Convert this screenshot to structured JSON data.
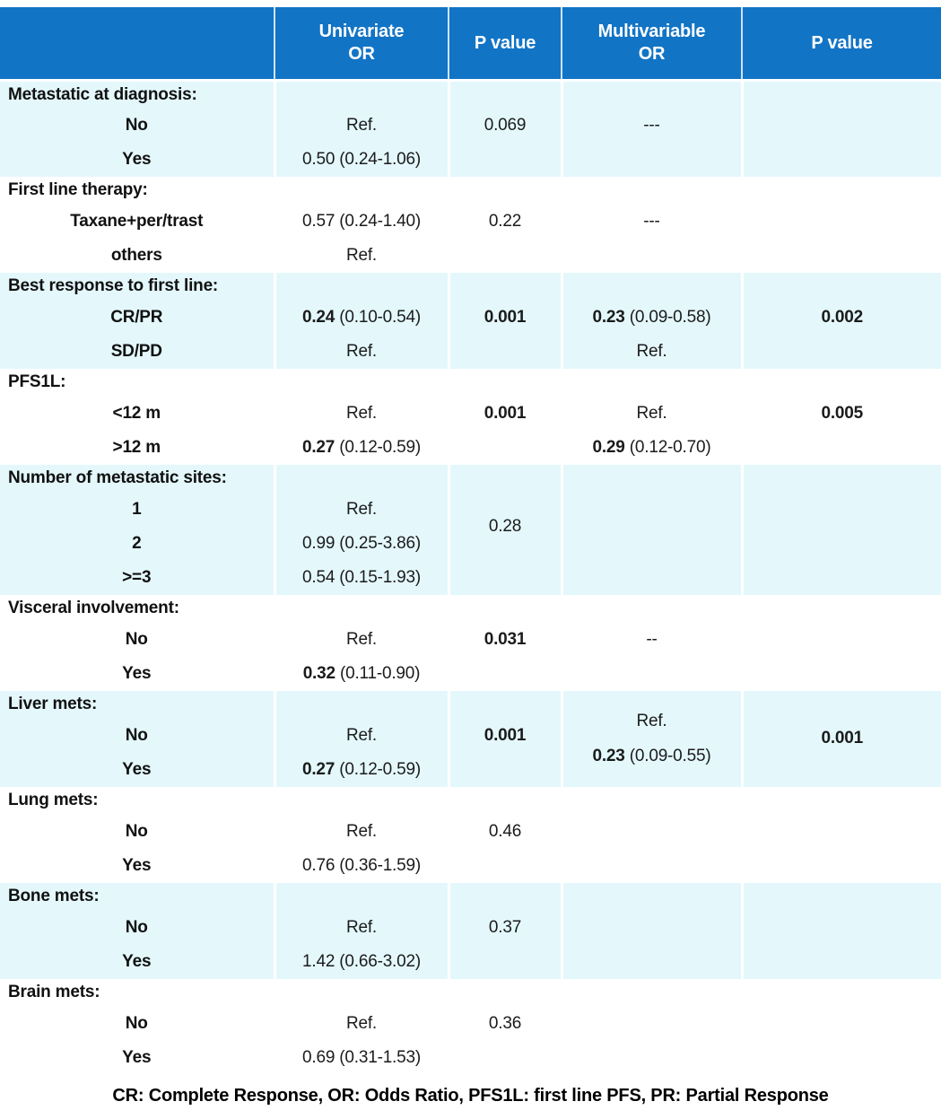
{
  "colors": {
    "header_bg": "#1274C5",
    "header_text": "#ffffff",
    "stripe_bg": "#E4F8FC",
    "body_text": "#1b1b1b"
  },
  "table": {
    "column_headers": [
      "",
      "Univariate\nOR",
      "P value",
      "Multivariable\nOR",
      "P value"
    ],
    "sections": [
      {
        "label": "Metastatic at diagnosis:",
        "shaded": true,
        "rows": [
          [
            {
              "sec": "Metastatic at diagnosis:"
            },
            null,
            null,
            null,
            null
          ],
          [
            {
              "sub": "No"
            },
            {
              "seg": [
                [
                  "Ref.",
                  0
                ]
              ]
            },
            {
              "seg": [
                [
                  "0.069",
                  0
                ]
              ]
            },
            {
              "seg": [
                [
                  "---",
                  0
                ]
              ]
            },
            null
          ],
          [
            {
              "sub": "Yes"
            },
            {
              "seg": [
                [
                  "0.50 (0.24-1.06)",
                  0
                ]
              ]
            },
            null,
            null,
            null
          ]
        ]
      },
      {
        "label": "First line therapy:",
        "shaded": false,
        "rows": [
          [
            {
              "sec": "First line therapy:"
            },
            null,
            null,
            null,
            null
          ],
          [
            {
              "sub": "Taxane+per/trast"
            },
            {
              "seg": [
                [
                  "0.57 (0.24-1.40)",
                  0
                ]
              ]
            },
            {
              "seg": [
                [
                  "0.22",
                  0
                ]
              ]
            },
            {
              "seg": [
                [
                  "---",
                  0
                ]
              ]
            },
            null
          ],
          [
            {
              "sub": "others"
            },
            {
              "seg": [
                [
                  "Ref.",
                  0
                ]
              ]
            },
            null,
            null,
            null
          ]
        ]
      },
      {
        "label": "Best response to first line:",
        "shaded": true,
        "rows": [
          [
            {
              "sec": "Best response to first line:"
            },
            null,
            null,
            null,
            null
          ],
          [
            {
              "sub": "CR/PR"
            },
            {
              "seg": [
                [
                  "0.24",
                  1
                ],
                [
                  " (0.10-0.54)",
                  0
                ]
              ]
            },
            {
              "seg": [
                [
                  "0.001",
                  1
                ]
              ]
            },
            {
              "seg": [
                [
                  "0.23",
                  1
                ],
                [
                  " (0.09-0.58)",
                  0
                ]
              ]
            },
            {
              "seg": [
                [
                  "0.002",
                  1
                ]
              ]
            }
          ],
          [
            {
              "sub": "SD/PD"
            },
            {
              "seg": [
                [
                  "Ref.",
                  0
                ]
              ]
            },
            null,
            {
              "seg": [
                [
                  "Ref.",
                  0
                ]
              ]
            },
            null
          ]
        ]
      },
      {
        "label": "PFS1L:",
        "shaded": false,
        "rows": [
          [
            {
              "sec": "PFS1L:"
            },
            null,
            null,
            null,
            null
          ],
          [
            {
              "sub": "<12 m"
            },
            {
              "seg": [
                [
                  "Ref.",
                  0
                ]
              ]
            },
            {
              "seg": [
                [
                  "0.001",
                  1
                ]
              ]
            },
            {
              "seg": [
                [
                  "Ref.",
                  0
                ]
              ]
            },
            {
              "seg": [
                [
                  "0.005",
                  1
                ]
              ]
            }
          ],
          [
            {
              "sub": ">12 m"
            },
            {
              "seg": [
                [
                  "0.27",
                  1
                ],
                [
                  " (0.12-0.59)",
                  0
                ]
              ]
            },
            null,
            {
              "seg": [
                [
                  "0.29",
                  1
                ],
                [
                  " (0.12-0.70)",
                  0
                ]
              ]
            },
            null
          ]
        ]
      },
      {
        "label": "Number of metastatic sites:",
        "shaded": true,
        "rows": [
          [
            {
              "sec": "Number of metastatic sites:"
            },
            null,
            null,
            null,
            null
          ],
          [
            {
              "sub": "1"
            },
            {
              "seg": [
                [
                  "Ref.",
                  0
                ]
              ]
            },
            {
              "seg": [
                [
                  "0.28",
                  0
                ]
              ],
              "rs": 2
            },
            null,
            null
          ],
          [
            {
              "sub": "2"
            },
            {
              "seg": [
                [
                  "0.99 (0.25-3.86)",
                  0
                ]
              ]
            },
            {
              "covered": true
            },
            null,
            null
          ],
          [
            {
              "sub": ">=3"
            },
            {
              "seg": [
                [
                  "0.54 (0.15-1.93)",
                  0
                ]
              ]
            },
            null,
            null,
            null
          ]
        ]
      },
      {
        "label": "Visceral involvement:",
        "shaded": false,
        "rows": [
          [
            {
              "sec": "Visceral involvement:"
            },
            null,
            null,
            null,
            null
          ],
          [
            {
              "sub": "No"
            },
            {
              "seg": [
                [
                  "Ref.",
                  0
                ]
              ]
            },
            {
              "seg": [
                [
                  "0.031",
                  1
                ]
              ]
            },
            {
              "seg": [
                [
                  "--",
                  0
                ]
              ]
            },
            null
          ],
          [
            {
              "sub": "Yes"
            },
            {
              "seg": [
                [
                  "0.32",
                  1
                ],
                [
                  " (0.11-0.90)",
                  0
                ]
              ]
            },
            null,
            null,
            null
          ]
        ]
      },
      {
        "label": "Liver mets:",
        "shaded": true,
        "rows": [
          [
            {
              "sec": "Liver mets:"
            },
            null,
            null,
            {
              "lines": [
                [
                  [
                    "Ref.",
                    0
                  ]
                ],
                [
                  [
                    "0.23",
                    1
                  ],
                  [
                    " (0.09-0.55)",
                    0
                  ]
                ]
              ],
              "rs": 3
            },
            {
              "seg": [
                [
                  "0.001",
                  1
                ]
              ],
              "rs": 3
            }
          ],
          [
            {
              "sub": "No"
            },
            {
              "seg": [
                [
                  "Ref.",
                  0
                ]
              ]
            },
            {
              "seg": [
                [
                  "0.001",
                  1
                ]
              ]
            },
            {
              "covered": true
            },
            {
              "covered": true
            }
          ],
          [
            {
              "sub": "Yes"
            },
            {
              "seg": [
                [
                  "0.27",
                  1
                ],
                [
                  " (0.12-0.59)",
                  0
                ]
              ]
            },
            null,
            {
              "covered": true
            },
            {
              "covered": true
            }
          ]
        ]
      },
      {
        "label": "Lung mets:",
        "shaded": false,
        "rows": [
          [
            {
              "sec": "Lung mets:"
            },
            null,
            null,
            null,
            null
          ],
          [
            {
              "sub": "No"
            },
            {
              "seg": [
                [
                  "Ref.",
                  0
                ]
              ]
            },
            {
              "seg": [
                [
                  "0.46",
                  0
                ]
              ]
            },
            null,
            null
          ],
          [
            {
              "sub": "Yes"
            },
            {
              "seg": [
                [
                  "0.76 (0.36-1.59)",
                  0
                ]
              ]
            },
            null,
            null,
            null
          ]
        ]
      },
      {
        "label": "Bone mets:",
        "shaded": true,
        "rows": [
          [
            {
              "sec": "Bone mets:"
            },
            null,
            null,
            null,
            null
          ],
          [
            {
              "sub": "No"
            },
            {
              "seg": [
                [
                  "Ref.",
                  0
                ]
              ]
            },
            {
              "seg": [
                [
                  "0.37",
                  0
                ]
              ]
            },
            null,
            null
          ],
          [
            {
              "sub": "Yes"
            },
            {
              "seg": [
                [
                  "1.42 (0.66-3.02)",
                  0
                ]
              ]
            },
            null,
            null,
            null
          ]
        ]
      },
      {
        "label": "Brain mets:",
        "shaded": false,
        "rows": [
          [
            {
              "sec": "Brain mets:"
            },
            null,
            null,
            null,
            null
          ],
          [
            {
              "sub": "No"
            },
            {
              "seg": [
                [
                  "Ref.",
                  0
                ]
              ]
            },
            {
              "seg": [
                [
                  "0.36",
                  0
                ]
              ]
            },
            null,
            null
          ],
          [
            {
              "sub": "Yes"
            },
            {
              "seg": [
                [
                  "0.69 (0.31-1.53)",
                  0
                ]
              ]
            },
            null,
            null,
            null
          ]
        ]
      }
    ]
  },
  "footnote": "CR: Complete Response, OR: Odds Ratio, PFS1L: first line PFS, PR: Partial Response"
}
